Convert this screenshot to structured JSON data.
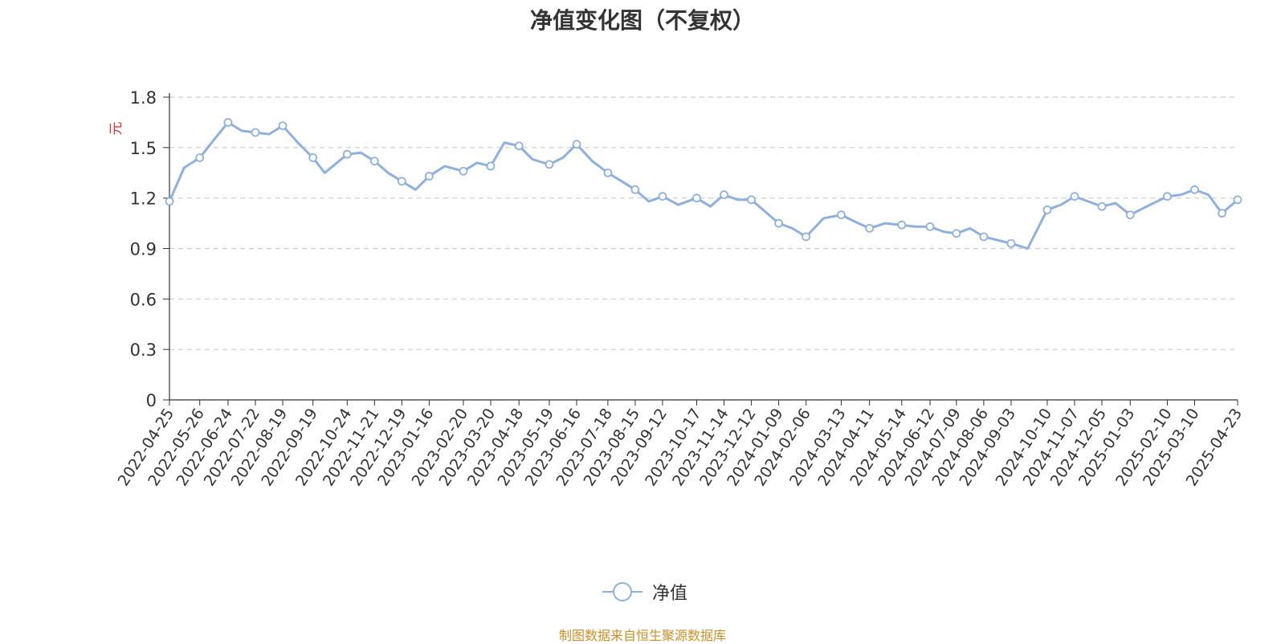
{
  "title": "净值变化图（不复权）",
  "source_note": "制图数据来自恒生聚源数据库",
  "colors": {
    "line": "#8fb0dc",
    "axis": "#333333",
    "grid": "#cccccc",
    "unit": "#e0312b",
    "source": "#c9902a"
  },
  "chart_data": {
    "type": "line",
    "title": "净值变化图（不复权）",
    "ylabel": "元",
    "ylim": [
      0,
      1.8
    ],
    "yticks": [
      "0",
      "0.3",
      "0.6",
      "0.9",
      "1.2",
      "1.5",
      "1.8"
    ],
    "grid": true,
    "legend_position": "bottom-center",
    "x_tick_labels": [
      "2022-04-25",
      "2022-05-26",
      "2022-06-24",
      "2022-07-22",
      "2022-08-19",
      "2022-09-19",
      "2022-10-24",
      "2022-11-21",
      "2022-12-19",
      "2023-01-16",
      "2023-02-20",
      "2023-03-20",
      "2023-04-18",
      "2023-05-19",
      "2023-06-16",
      "2023-07-18",
      "2023-08-15",
      "2023-09-12",
      "2023-10-17",
      "2023-11-14",
      "2023-12-12",
      "2024-01-09",
      "2024-02-06",
      "2024-03-13",
      "2024-04-11",
      "2024-05-14",
      "2024-06-12",
      "2024-07-09",
      "2024-08-06",
      "2024-09-03",
      "2024-10-10",
      "2024-11-07",
      "2024-12-05",
      "2025-01-03",
      "2025-02-10",
      "2025-03-10",
      "2025-04-23"
    ],
    "series": [
      {
        "name": "净值",
        "x": [
          "2022-04-25",
          "2022-05-10",
          "2022-05-26",
          "2022-06-10",
          "2022-06-24",
          "2022-07-08",
          "2022-07-22",
          "2022-08-05",
          "2022-08-19",
          "2022-09-05",
          "2022-09-19",
          "2022-10-01",
          "2022-10-24",
          "2022-11-07",
          "2022-11-21",
          "2022-12-05",
          "2022-12-19",
          "2023-01-02",
          "2023-01-16",
          "2023-02-01",
          "2023-02-20",
          "2023-03-06",
          "2023-03-20",
          "2023-04-03",
          "2023-04-18",
          "2023-05-02",
          "2023-05-19",
          "2023-06-02",
          "2023-06-16",
          "2023-07-02",
          "2023-07-18",
          "2023-08-01",
          "2023-08-15",
          "2023-08-29",
          "2023-09-12",
          "2023-09-28",
          "2023-10-17",
          "2023-10-31",
          "2023-11-14",
          "2023-11-28",
          "2023-12-12",
          "2023-12-26",
          "2024-01-09",
          "2024-01-23",
          "2024-02-06",
          "2024-02-24",
          "2024-03-13",
          "2024-03-27",
          "2024-04-11",
          "2024-04-27",
          "2024-05-14",
          "2024-05-28",
          "2024-06-12",
          "2024-06-26",
          "2024-07-09",
          "2024-07-23",
          "2024-08-06",
          "2024-08-20",
          "2024-09-03",
          "2024-09-20",
          "2024-10-10",
          "2024-10-24",
          "2024-11-07",
          "2024-11-21",
          "2024-12-05",
          "2024-12-19",
          "2025-01-03",
          "2025-01-20",
          "2025-02-10",
          "2025-02-24",
          "2025-03-10",
          "2025-03-24",
          "2025-04-07",
          "2025-04-23"
        ],
        "values": [
          1.18,
          1.38,
          1.44,
          1.55,
          1.65,
          1.6,
          1.59,
          1.58,
          1.63,
          1.52,
          1.44,
          1.35,
          1.46,
          1.47,
          1.42,
          1.35,
          1.3,
          1.25,
          1.33,
          1.39,
          1.36,
          1.41,
          1.39,
          1.53,
          1.51,
          1.43,
          1.4,
          1.44,
          1.52,
          1.42,
          1.35,
          1.3,
          1.25,
          1.18,
          1.21,
          1.16,
          1.2,
          1.15,
          1.22,
          1.19,
          1.19,
          1.12,
          1.05,
          1.02,
          0.97,
          1.08,
          1.1,
          1.06,
          1.02,
          1.05,
          1.04,
          1.03,
          1.03,
          1.0,
          0.99,
          1.02,
          0.97,
          0.95,
          0.93,
          0.9,
          1.13,
          1.16,
          1.21,
          1.18,
          1.15,
          1.17,
          1.1,
          1.15,
          1.21,
          1.22,
          1.25,
          1.22,
          1.11,
          1.19
        ]
      }
    ]
  }
}
